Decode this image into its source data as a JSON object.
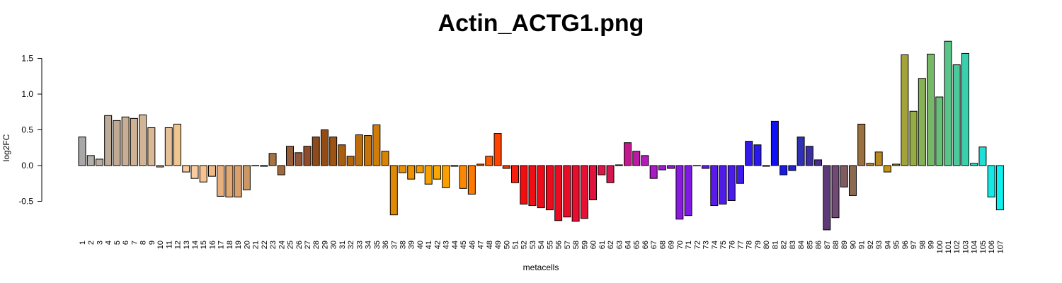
{
  "chart_data": {
    "type": "bar",
    "title": "Actin_ACTG1.png",
    "xlabel": "metacells",
    "ylabel": "log2FC",
    "ylim": [
      -0.9,
      1.7
    ],
    "yticks": [
      -0.5,
      0.0,
      0.5,
      1.0,
      1.5
    ],
    "ytick_labels": [
      "-0.5",
      "0.0",
      "0.5",
      "1.0",
      "1.5"
    ],
    "grid": false,
    "legend": "none",
    "categories": [
      "1",
      "2",
      "3",
      "4",
      "5",
      "6",
      "7",
      "8",
      "9",
      "10",
      "11",
      "12",
      "13",
      "14",
      "15",
      "16",
      "17",
      "18",
      "19",
      "20",
      "21",
      "22",
      "23",
      "24",
      "25",
      "26",
      "27",
      "28",
      "29",
      "30",
      "31",
      "32",
      "33",
      "34",
      "35",
      "36",
      "37",
      "38",
      "39",
      "40",
      "41",
      "42",
      "43",
      "44",
      "45",
      "46",
      "47",
      "48",
      "49",
      "50",
      "51",
      "52",
      "53",
      "54",
      "55",
      "56",
      "57",
      "58",
      "59",
      "60",
      "61",
      "62",
      "63",
      "64",
      "65",
      "66",
      "67",
      "68",
      "69",
      "70",
      "71",
      "72",
      "73",
      "74",
      "75",
      "76",
      "77",
      "78",
      "79",
      "80",
      "81",
      "82",
      "83",
      "84",
      "85",
      "86",
      "87",
      "88",
      "89",
      "90",
      "91",
      "92",
      "93",
      "94",
      "95",
      "96",
      "97",
      "98",
      "99",
      "100",
      "101",
      "102",
      "103",
      "104",
      "105",
      "106",
      "107"
    ],
    "values": [
      0.4,
      0.14,
      0.09,
      0.7,
      0.63,
      0.68,
      0.66,
      0.71,
      0.53,
      -0.02,
      0.53,
      0.58,
      -0.09,
      -0.18,
      -0.23,
      -0.15,
      -0.43,
      -0.44,
      -0.44,
      -0.34,
      0.0,
      -0.01,
      0.17,
      -0.13,
      0.27,
      0.18,
      0.27,
      0.4,
      0.5,
      0.4,
      0.29,
      0.13,
      0.43,
      0.42,
      0.57,
      0.2,
      -0.69,
      -0.1,
      -0.19,
      -0.1,
      -0.26,
      -0.19,
      -0.31,
      -0.01,
      -0.32,
      -0.4,
      0.02,
      0.13,
      0.45,
      -0.04,
      -0.24,
      -0.54,
      -0.56,
      -0.59,
      -0.62,
      -0.77,
      -0.72,
      -0.78,
      -0.74,
      -0.48,
      -0.13,
      -0.24,
      0.01,
      0.32,
      0.2,
      0.14,
      -0.18,
      -0.06,
      -0.04,
      -0.75,
      -0.7,
      0.0,
      -0.04,
      -0.56,
      -0.54,
      -0.49,
      -0.25,
      0.34,
      0.29,
      -0.01,
      0.62,
      -0.13,
      -0.07,
      0.4,
      0.27,
      0.08,
      -0.9,
      -0.73,
      -0.3,
      -0.42,
      0.58,
      0.03,
      0.19,
      -0.09,
      0.02,
      1.55,
      0.76,
      1.22,
      1.56,
      0.96,
      1.74,
      1.41,
      1.57,
      0.03,
      0.26,
      -0.44,
      -0.62
    ],
    "colors": [
      "#a8a8a8",
      "#b5b0a8",
      "#b8ad9f",
      "#bcab96",
      "#c1aa94",
      "#c7ae94",
      "#cdb294",
      "#d3b595",
      "#d9b997",
      "#dfbc98",
      "#e6c098",
      "#f0c690",
      "#f6c89c",
      "#f9cc9f",
      "#f5c293",
      "#efb884",
      "#e9b07d",
      "#e2a874",
      "#d9a06d",
      "#cd9763",
      "#c18f5a",
      "#b5824d",
      "#a87343",
      "#9e6a3e",
      "#98603a",
      "#925535",
      "#8e4c2a",
      "#8d4a1b",
      "#934c13",
      "#9c5412",
      "#a85d0f",
      "#b3650b",
      "#bd6d0a",
      "#c87408",
      "#d17c06",
      "#d98305",
      "#e08904",
      "#e88e03",
      "#ee9402",
      "#f29a03",
      "#f6a100",
      "#f7a700",
      "#f9a000",
      "#fa9400",
      "#fb8800",
      "#fc7a00",
      "#fd6a00",
      "#fe5a00",
      "#ff4400",
      "#f53a05",
      "#f7200f",
      "#f20d0f",
      "#f10d14",
      "#ef0c18",
      "#ed0c1d",
      "#eb0c22",
      "#e90d28",
      "#e70e2e",
      "#e51034",
      "#e1133c",
      "#db1546",
      "#d51651",
      "#cf185d",
      "#c11a8c",
      "#bb1aa6",
      "#b31bb8",
      "#a91bc6",
      "#9f1bd2",
      "#941ad9",
      "#891adf",
      "#7e1ae4",
      "#721ae8",
      "#661ae9",
      "#5b1ae9",
      "#501ae9",
      "#4a1bea",
      "#3f1aeb",
      "#331aec",
      "#2a18ef",
      "#1f15f2",
      "#1010f4",
      "#1a1ae0",
      "#2424cc",
      "#3030b4",
      "#3a2f9c",
      "#4a2d8c",
      "#5c3a78",
      "#6e4a74",
      "#805c60",
      "#8c6a52",
      "#9a7040",
      "#aa7f30",
      "#b98920",
      "#c49418",
      "#ac9d34",
      "#a4a33a",
      "#96aa46",
      "#86b256",
      "#77b866",
      "#68be76",
      "#58c487",
      "#4ac99a",
      "#3ccfae",
      "#2ed6c2",
      "#20dfd6",
      "#16e8e4",
      "#10f0ef"
    ]
  }
}
